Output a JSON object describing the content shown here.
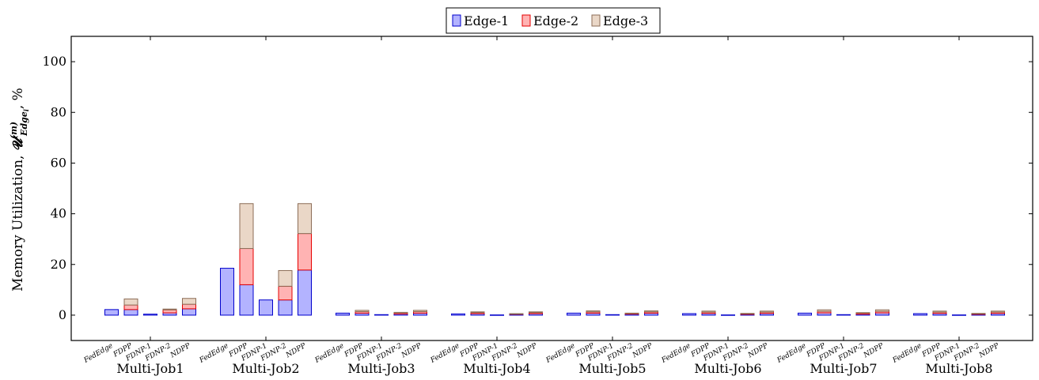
{
  "chart_data": {
    "type": "bar",
    "stacked": true,
    "ylabel": "Memory Utilization, 𝓤ₑdgeᵢ⁽ᵐ⁾, %",
    "ylabel_main": "Memory Utilization, ",
    "ylabel_symbol": "𝓤",
    "ylabel_sup": "(m)",
    "ylabel_sub": "Edge",
    "ylabel_sub_i": "i",
    "ylabel_suffix": ", %",
    "ylim": [
      -10,
      110
    ],
    "yticks": [
      0,
      20,
      40,
      60,
      80,
      100
    ],
    "legend_position": "top-center",
    "groups": [
      "Multi-Job1",
      "Multi-Job2",
      "Multi-Job3",
      "Multi-Job4",
      "Multi-Job5",
      "Multi-Job6",
      "Multi-Job7",
      "Multi-Job8"
    ],
    "methods": [
      "FedEdge",
      "FDPP",
      "FDNP-1",
      "FDNP-2",
      "NDPP"
    ],
    "series": [
      {
        "name": "Edge-1",
        "color": "#b3b3ff",
        "edge_color": "#0000cc",
        "values": [
          [
            2.2,
            2.2,
            0.4,
            0.9,
            2.5
          ],
          [
            18.5,
            12.0,
            6.0,
            6.0,
            17.8
          ],
          [
            0.8,
            0.8,
            0.2,
            0.5,
            0.8
          ],
          [
            0.5,
            0.6,
            0.1,
            0.3,
            0.6
          ],
          [
            0.8,
            0.8,
            0.2,
            0.4,
            0.8
          ],
          [
            0.6,
            0.7,
            0.1,
            0.3,
            0.7
          ],
          [
            0.8,
            0.9,
            0.2,
            0.4,
            0.9
          ],
          [
            0.6,
            0.7,
            0.1,
            0.3,
            0.7
          ]
        ]
      },
      {
        "name": "Edge-2",
        "color": "#ffb3b3",
        "edge_color": "#e60000",
        "values": [
          [
            0.0,
            1.8,
            0.0,
            1.2,
            1.8
          ],
          [
            0.0,
            14.3,
            0.0,
            5.4,
            14.4
          ],
          [
            0.0,
            0.6,
            0.0,
            0.4,
            0.6
          ],
          [
            0.0,
            0.4,
            0.0,
            0.2,
            0.4
          ],
          [
            0.0,
            0.5,
            0.0,
            0.3,
            0.5
          ],
          [
            0.0,
            0.5,
            0.0,
            0.3,
            0.5
          ],
          [
            0.0,
            0.6,
            0.0,
            0.4,
            0.6
          ],
          [
            0.0,
            0.5,
            0.0,
            0.3,
            0.5
          ]
        ]
      },
      {
        "name": "Edge-3",
        "color": "#ead7c7",
        "edge_color": "#8c6d57",
        "values": [
          [
            0.0,
            2.4,
            0.0,
            0.3,
            2.3
          ],
          [
            0.0,
            17.7,
            0.0,
            6.2,
            11.8
          ],
          [
            0.0,
            0.5,
            0.0,
            0.2,
            0.5
          ],
          [
            0.0,
            0.3,
            0.0,
            0.1,
            0.3
          ],
          [
            0.0,
            0.4,
            0.0,
            0.1,
            0.4
          ],
          [
            0.0,
            0.4,
            0.0,
            0.1,
            0.4
          ],
          [
            0.0,
            0.6,
            0.0,
            0.2,
            0.6
          ],
          [
            0.0,
            0.4,
            0.0,
            0.1,
            0.4
          ]
        ]
      }
    ]
  }
}
